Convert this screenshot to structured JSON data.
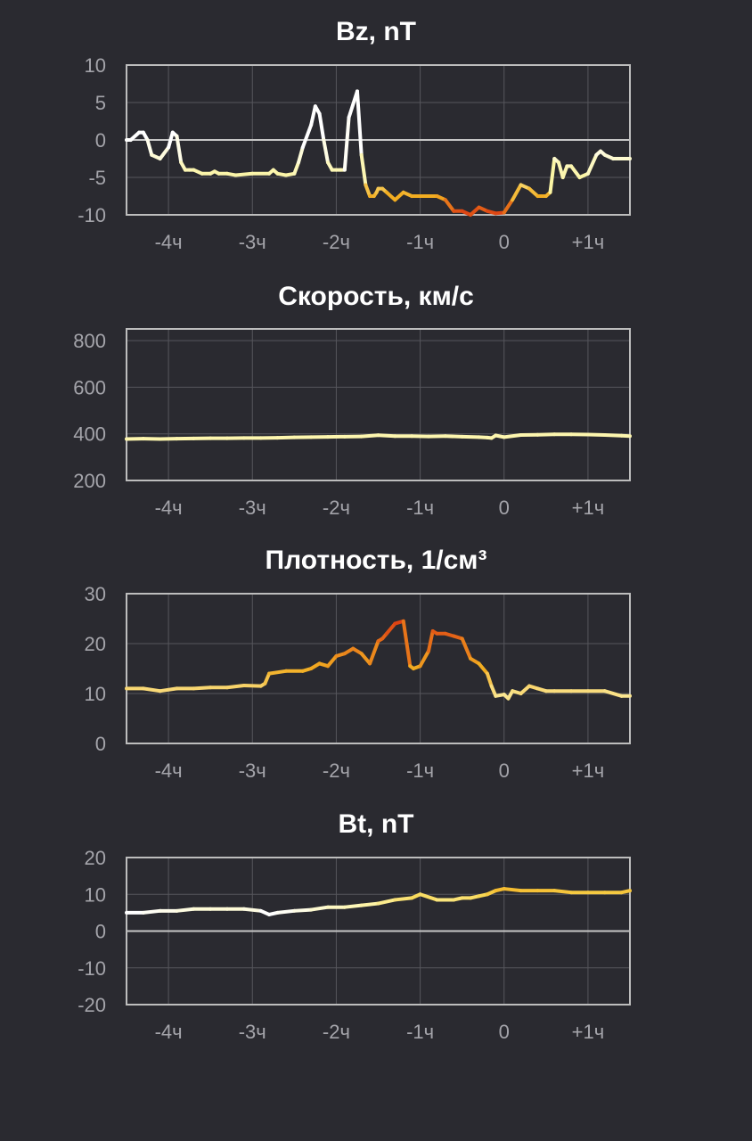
{
  "chart_data": [
    {
      "type": "line",
      "title": "Bz, nT",
      "ylim": [
        -10,
        10
      ],
      "yticks": [
        10,
        5,
        0,
        -5,
        -10
      ],
      "ytick_labels": [
        "10",
        "5",
        "0",
        "-5",
        "-10"
      ],
      "xlim": [
        -4.5,
        1.5
      ],
      "xticks": [
        -4,
        -3,
        -2,
        -1,
        0,
        1
      ],
      "xtick_labels": [
        "-4ч",
        "-3ч",
        "-2ч",
        "-1ч",
        "0",
        "+1ч"
      ],
      "grid": true,
      "zero_line": true,
      "now_marker_x": 0,
      "colors": {
        "now_line": "#3db8f5",
        "axis": "#bdbdbd",
        "grid": "#56565c",
        "zero": "#c6c6c6"
      },
      "series": [
        {
          "x": [
            -4.5,
            -4.45,
            -4.35,
            -4.3,
            -4.25,
            -4.2,
            -4.1,
            -4.0,
            -3.95,
            -3.9,
            -3.85,
            -3.8,
            -3.75,
            -3.7,
            -3.6,
            -3.5,
            -3.45,
            -3.4,
            -3.3,
            -3.2,
            -3.0,
            -2.8,
            -2.75,
            -2.7,
            -2.6,
            -2.5,
            -2.45,
            -2.4,
            -2.3,
            -2.25,
            -2.2,
            -2.15,
            -2.1,
            -2.05,
            -2.0,
            -1.95,
            -1.9,
            -1.85,
            -1.75,
            -1.7,
            -1.65,
            -1.6,
            -1.55,
            -1.52,
            -1.5,
            -1.45,
            -1.4,
            -1.3,
            -1.2,
            -1.1,
            -1.0,
            -0.9,
            -0.8,
            -0.7,
            -0.6,
            -0.5,
            -0.4,
            -0.3,
            -0.2,
            -0.1,
            0.0,
            0.1,
            0.2,
            0.3,
            0.4,
            0.5,
            0.55,
            0.6,
            0.65,
            0.7,
            0.75,
            0.8,
            0.9,
            1.0,
            1.1,
            1.15,
            1.2,
            1.3,
            1.4,
            1.5
          ],
          "y": [
            0,
            0,
            1,
            1,
            0,
            -2,
            -2.5,
            -1,
            1,
            0.5,
            -3,
            -4,
            -4,
            -4,
            -4.5,
            -4.5,
            -4.2,
            -4.5,
            -4.5,
            -4.7,
            -4.5,
            -4.5,
            -4,
            -4.5,
            -4.7,
            -4.5,
            -3,
            -1,
            2,
            4.5,
            3.5,
            0,
            -3,
            -4,
            -4,
            -4,
            -4,
            3,
            6.5,
            -2,
            -6,
            -7.5,
            -7.5,
            -7,
            -6.5,
            -6.5,
            -7,
            -8,
            -7,
            -7.5,
            -7.5,
            -7.5,
            -7.5,
            -8,
            -9.5,
            -9.5,
            -10,
            -9,
            -9.5,
            -9.8,
            -9.7,
            -8,
            -6,
            -6.5,
            -7.5,
            -7.5,
            -7,
            -2.5,
            -3,
            -5,
            -3.5,
            -3.5,
            -5,
            -4.5,
            -2,
            -1.5,
            -2,
            -2.5,
            -2.5,
            -2.5
          ],
          "color_stops": [
            {
              "value": 0,
              "color": "#ffffff"
            },
            {
              "value": -5,
              "color": "#fbf4a0"
            },
            {
              "value": -7.5,
              "color": "#f2ad21"
            },
            {
              "value": -10,
              "color": "#dc3a12"
            }
          ]
        }
      ]
    },
    {
      "type": "line",
      "title": "Скорость, км/с",
      "ylim": [
        200,
        850
      ],
      "yticks": [
        800,
        600,
        400,
        200
      ],
      "ytick_labels": [
        "800",
        "600",
        "400",
        "200"
      ],
      "xlim": [
        -4.5,
        1.5
      ],
      "xticks": [
        -4,
        -3,
        -2,
        -1,
        0,
        1
      ],
      "xtick_labels": [
        "-4ч",
        "-3ч",
        "-2ч",
        "-1ч",
        "0",
        "+1ч"
      ],
      "grid": true,
      "zero_line": false,
      "now_marker_x": 0,
      "colors": {
        "now_line": "#3db8f5",
        "axis": "#bdbdbd",
        "grid": "#56565c",
        "zero": "#c6c6c6"
      },
      "series": [
        {
          "x": [
            -4.5,
            -4.3,
            -4.1,
            -3.9,
            -3.7,
            -3.5,
            -3.3,
            -3.1,
            -2.9,
            -2.7,
            -2.5,
            -2.3,
            -2.1,
            -1.9,
            -1.7,
            -1.5,
            -1.3,
            -1.1,
            -0.9,
            -0.7,
            -0.5,
            -0.3,
            -0.2,
            -0.15,
            -0.1,
            0.0,
            0.2,
            0.4,
            0.6,
            0.8,
            1.0,
            1.2,
            1.4,
            1.5
          ],
          "y": [
            378,
            379,
            378,
            379,
            380,
            381,
            381,
            382,
            382,
            383,
            385,
            386,
            387,
            388,
            389,
            394,
            390,
            390,
            389,
            390,
            388,
            386,
            384,
            382,
            393,
            386,
            395,
            396,
            398,
            398,
            397,
            395,
            392,
            390
          ],
          "color_stops": [
            {
              "value": 400,
              "color": "#fdf6ae"
            },
            {
              "value": 600,
              "color": "#f2ad21"
            },
            {
              "value": 800,
              "color": "#dc3a12"
            }
          ]
        }
      ]
    },
    {
      "type": "line",
      "title": "Плотность, 1/см³",
      "ylim": [
        0,
        30
      ],
      "yticks": [
        30,
        20,
        10,
        0
      ],
      "ytick_labels": [
        "30",
        "20",
        "10",
        "0"
      ],
      "xlim": [
        -4.5,
        1.5
      ],
      "xticks": [
        -4,
        -3,
        -2,
        -1,
        0,
        1
      ],
      "xtick_labels": [
        "-4ч",
        "-3ч",
        "-2ч",
        "-1ч",
        "0",
        "+1ч"
      ],
      "grid": true,
      "zero_line": false,
      "now_marker_x": 0,
      "colors": {
        "now_line": "#3db8f5",
        "axis": "#bdbdbd",
        "grid": "#56565c",
        "zero": "#c6c6c6"
      },
      "series": [
        {
          "x": [
            -4.5,
            -4.3,
            -4.1,
            -3.9,
            -3.7,
            -3.5,
            -3.3,
            -3.1,
            -2.9,
            -2.85,
            -2.8,
            -2.6,
            -2.4,
            -2.3,
            -2.2,
            -2.1,
            -2.0,
            -1.9,
            -1.8,
            -1.7,
            -1.6,
            -1.5,
            -1.45,
            -1.4,
            -1.3,
            -1.2,
            -1.12,
            -1.08,
            -1.0,
            -0.9,
            -0.85,
            -0.8,
            -0.7,
            -0.6,
            -0.5,
            -0.4,
            -0.3,
            -0.2,
            -0.15,
            -0.1,
            0.0,
            0.05,
            0.1,
            0.2,
            0.3,
            0.4,
            0.5,
            0.6,
            0.8,
            1.0,
            1.2,
            1.4,
            1.5
          ],
          "y": [
            11,
            11,
            10.5,
            11,
            11,
            11.2,
            11.2,
            11.6,
            11.5,
            12,
            14,
            14.5,
            14.5,
            15,
            16,
            15.5,
            17.5,
            18,
            19,
            18,
            16,
            20.5,
            21,
            22,
            24,
            24.5,
            15.5,
            15,
            15.5,
            18.5,
            22.5,
            22,
            22,
            21.5,
            21,
            17,
            16,
            14,
            11.5,
            9.5,
            9.8,
            9,
            10.5,
            10,
            11.5,
            11,
            10.5,
            10.5,
            10.5,
            10.5,
            10.5,
            9.5,
            9.5
          ],
          "color_stops": [
            {
              "value": 8,
              "color": "#fdf6ae"
            },
            {
              "value": 15,
              "color": "#f2ad21"
            },
            {
              "value": 25,
              "color": "#dc3a12"
            }
          ]
        }
      ]
    },
    {
      "type": "line",
      "title": "Bt, nT",
      "ylim": [
        -20,
        20
      ],
      "yticks": [
        20,
        10,
        0,
        -10,
        -20
      ],
      "ytick_labels": [
        "20",
        "10",
        "0",
        "-10",
        "-20"
      ],
      "xlim": [
        -4.5,
        1.5
      ],
      "xticks": [
        -4,
        -3,
        -2,
        -1,
        0,
        1
      ],
      "xtick_labels": [
        "-4ч",
        "-3ч",
        "-2ч",
        "-1ч",
        "0",
        "+1ч"
      ],
      "grid": true,
      "zero_line": true,
      "now_marker_x": 0,
      "colors": {
        "now_line": "#3db8f5",
        "axis": "#bdbdbd",
        "grid": "#56565c",
        "zero": "#c6c6c6"
      },
      "series": [
        {
          "x": [
            -4.5,
            -4.3,
            -4.1,
            -3.9,
            -3.7,
            -3.5,
            -3.3,
            -3.1,
            -2.9,
            -2.8,
            -2.7,
            -2.5,
            -2.3,
            -2.1,
            -1.9,
            -1.7,
            -1.5,
            -1.3,
            -1.1,
            -1.0,
            -0.8,
            -0.7,
            -0.6,
            -0.5,
            -0.4,
            -0.3,
            -0.2,
            -0.1,
            0.0,
            0.2,
            0.4,
            0.6,
            0.8,
            1.0,
            1.2,
            1.4,
            1.5
          ],
          "y": [
            5,
            5,
            5.5,
            5.5,
            6,
            6,
            6,
            6,
            5.5,
            4.5,
            5,
            5.5,
            5.8,
            6.5,
            6.5,
            7,
            7.5,
            8.5,
            9,
            10,
            8.5,
            8.5,
            8.5,
            9,
            9,
            9.5,
            10,
            11,
            11.5,
            11,
            11,
            11,
            10.5,
            10.5,
            10.5,
            10.5,
            11
          ],
          "color_stops": [
            {
              "value": 5,
              "color": "#ffffff"
            },
            {
              "value": 7,
              "color": "#fdf6ae"
            },
            {
              "value": 10,
              "color": "#f7d44c"
            },
            {
              "value": 12,
              "color": "#f2ad21"
            }
          ]
        }
      ]
    }
  ]
}
